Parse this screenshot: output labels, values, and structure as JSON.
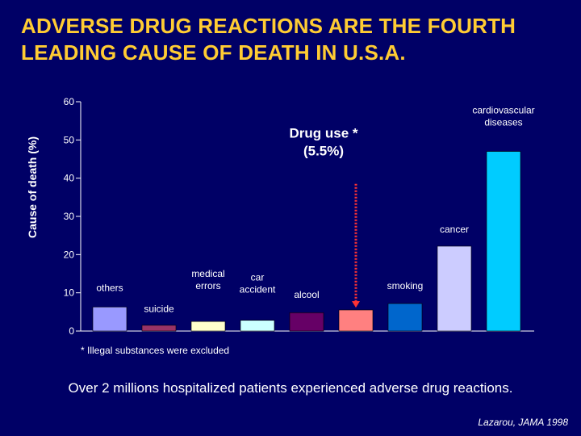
{
  "slide": {
    "title_line1": "ADVERSE DRUG REACTIONS ARE THE FOURTH",
    "title_line2": "LEADING CAUSE OF DEATH IN U.S.A.",
    "footnote": "* Illegal substances were excluded",
    "summary": "Over 2 millions hospitalized patients experienced adverse drug reactions.",
    "citation": "Lazarou, JAMA 1998"
  },
  "chart_data": {
    "type": "bar",
    "ylabel": "Cause of death  (%)",
    "ylim": [
      0,
      60
    ],
    "yticks": [
      0,
      10,
      20,
      30,
      40,
      50,
      60
    ],
    "categories": [
      "others",
      "suicide",
      "medical errors",
      "car accident",
      "alcool",
      "Drug use * (5.5%)",
      "smoking",
      "cancer",
      "cardiovascular diseases"
    ],
    "values": [
      6.3,
      1.5,
      2.5,
      2.8,
      4.8,
      5.5,
      7.2,
      22.2,
      47.0
    ],
    "bar_colors": [
      "#9999FF",
      "#993366",
      "#FFFFCC",
      "#CCFFFF",
      "#660066",
      "#FF8080",
      "#0066CC",
      "#CCCCFF",
      "#00CCFF"
    ],
    "bar_labels": [
      {
        "lines": [
          "others"
        ],
        "value_at": 10.5
      },
      {
        "lines": [
          "suicide"
        ],
        "value_at": 5
      },
      {
        "lines": [
          "medical",
          "errors"
        ],
        "value_at": 11
      },
      {
        "lines": [
          "car",
          "accident"
        ],
        "value_at": 10
      },
      {
        "lines": [
          "alcool"
        ],
        "value_at": 8.7
      },
      {
        "lines": [
          "Drug use *",
          "(5.5%)"
        ],
        "value_at": 46,
        "highlight": true
      },
      {
        "lines": [
          "smoking"
        ],
        "value_at": 11
      },
      {
        "lines": [
          "cancer"
        ],
        "value_at": 25.8
      },
      {
        "lines": [
          "cardiovascular",
          "diseases"
        ],
        "value_at": 53.8
      }
    ],
    "highlight_index": 5,
    "arrow_color": "#FF3333",
    "grid": false
  }
}
